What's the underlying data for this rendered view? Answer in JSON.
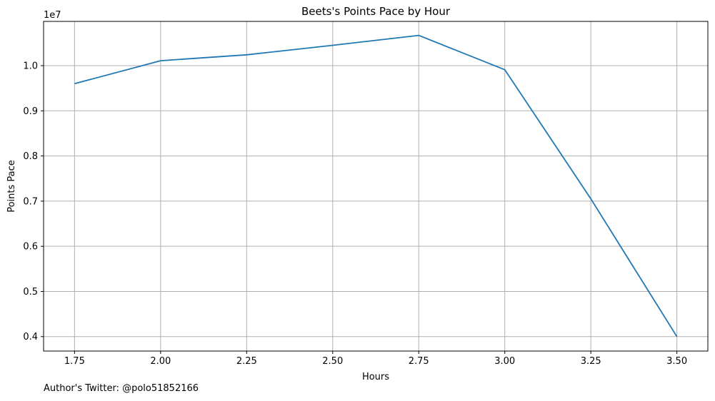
{
  "chart_data": {
    "type": "line",
    "title": "Beets's Points Pace by Hour",
    "xlabel": "Hours",
    "ylabel": "Points Pace",
    "y_offset_label": "1e7",
    "x": [
      1.75,
      2.0,
      2.25,
      2.5,
      2.75,
      3.0,
      3.25,
      3.5
    ],
    "series": [
      {
        "values": [
          9600000,
          10110000,
          10240000,
          10450000,
          10670000,
          9910000,
          7050000,
          4000000
        ],
        "color": "#1f77b4"
      }
    ],
    "xlim": [
      1.66,
      3.59
    ],
    "ylim": [
      3680000,
      10980000
    ],
    "x_ticks": [
      1.75,
      2.0,
      2.25,
      2.5,
      2.75,
      3.0,
      3.25,
      3.5
    ],
    "x_tick_labels": [
      "1.75",
      "2.00",
      "2.25",
      "2.50",
      "2.75",
      "3.00",
      "3.25",
      "3.50"
    ],
    "y_ticks": [
      4000000,
      5000000,
      6000000,
      7000000,
      8000000,
      9000000,
      10000000
    ],
    "y_tick_labels": [
      "0.4",
      "0.5",
      "0.6",
      "0.7",
      "0.8",
      "0.9",
      "1.0"
    ],
    "grid": true,
    "legend": "none",
    "grid_color": "#b0b0b0"
  },
  "footer": {
    "note": "Author's Twitter: @polo51852166"
  }
}
